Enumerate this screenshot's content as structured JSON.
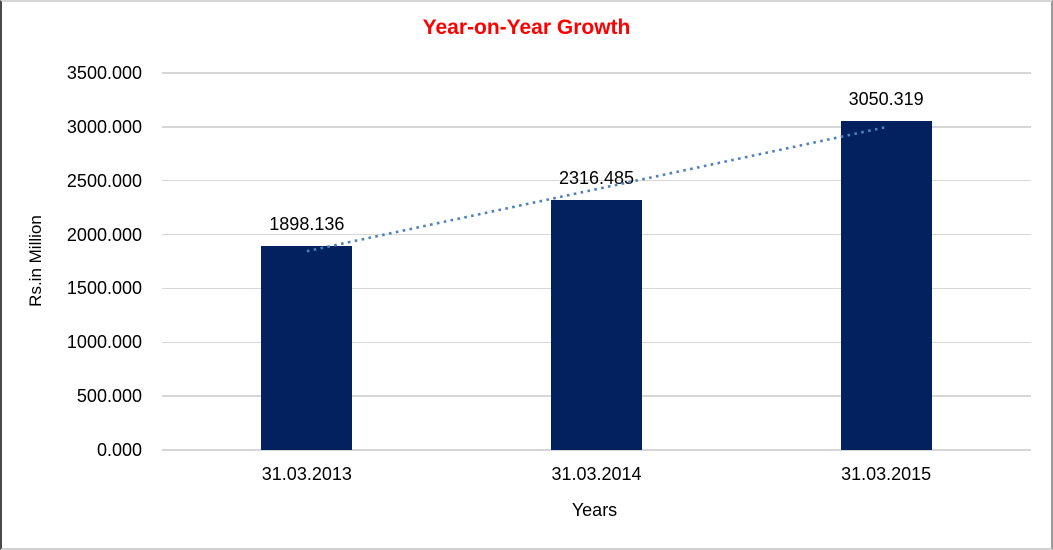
{
  "chart_data": {
    "type": "bar",
    "title": "Year-on-Year Growth",
    "title_color": "#FF0000",
    "categories": [
      "31.03.2013",
      "31.03.2014",
      "31.03.2015"
    ],
    "values": [
      1898.136,
      2316.485,
      3050.319
    ],
    "value_labels": [
      "1898.136",
      "2316.485",
      "3050.319"
    ],
    "xlabel": "Years",
    "ylabel": "Rs.in Million",
    "ylim": [
      0,
      3500
    ],
    "y_ticks": [
      0,
      500,
      1000,
      1500,
      2000,
      2500,
      3000,
      3500
    ],
    "y_tick_labels": [
      "0.000",
      "500.000",
      "1000.000",
      "1500.000",
      "2000.000",
      "2500.000",
      "3000.000",
      "3500.000"
    ],
    "grid": true,
    "legend": "none",
    "bar_color": "#02215E",
    "gridline_color": "#D6D6D6",
    "trendline": {
      "type": "linear",
      "style": "dotted",
      "color": "#4F81BD"
    }
  }
}
